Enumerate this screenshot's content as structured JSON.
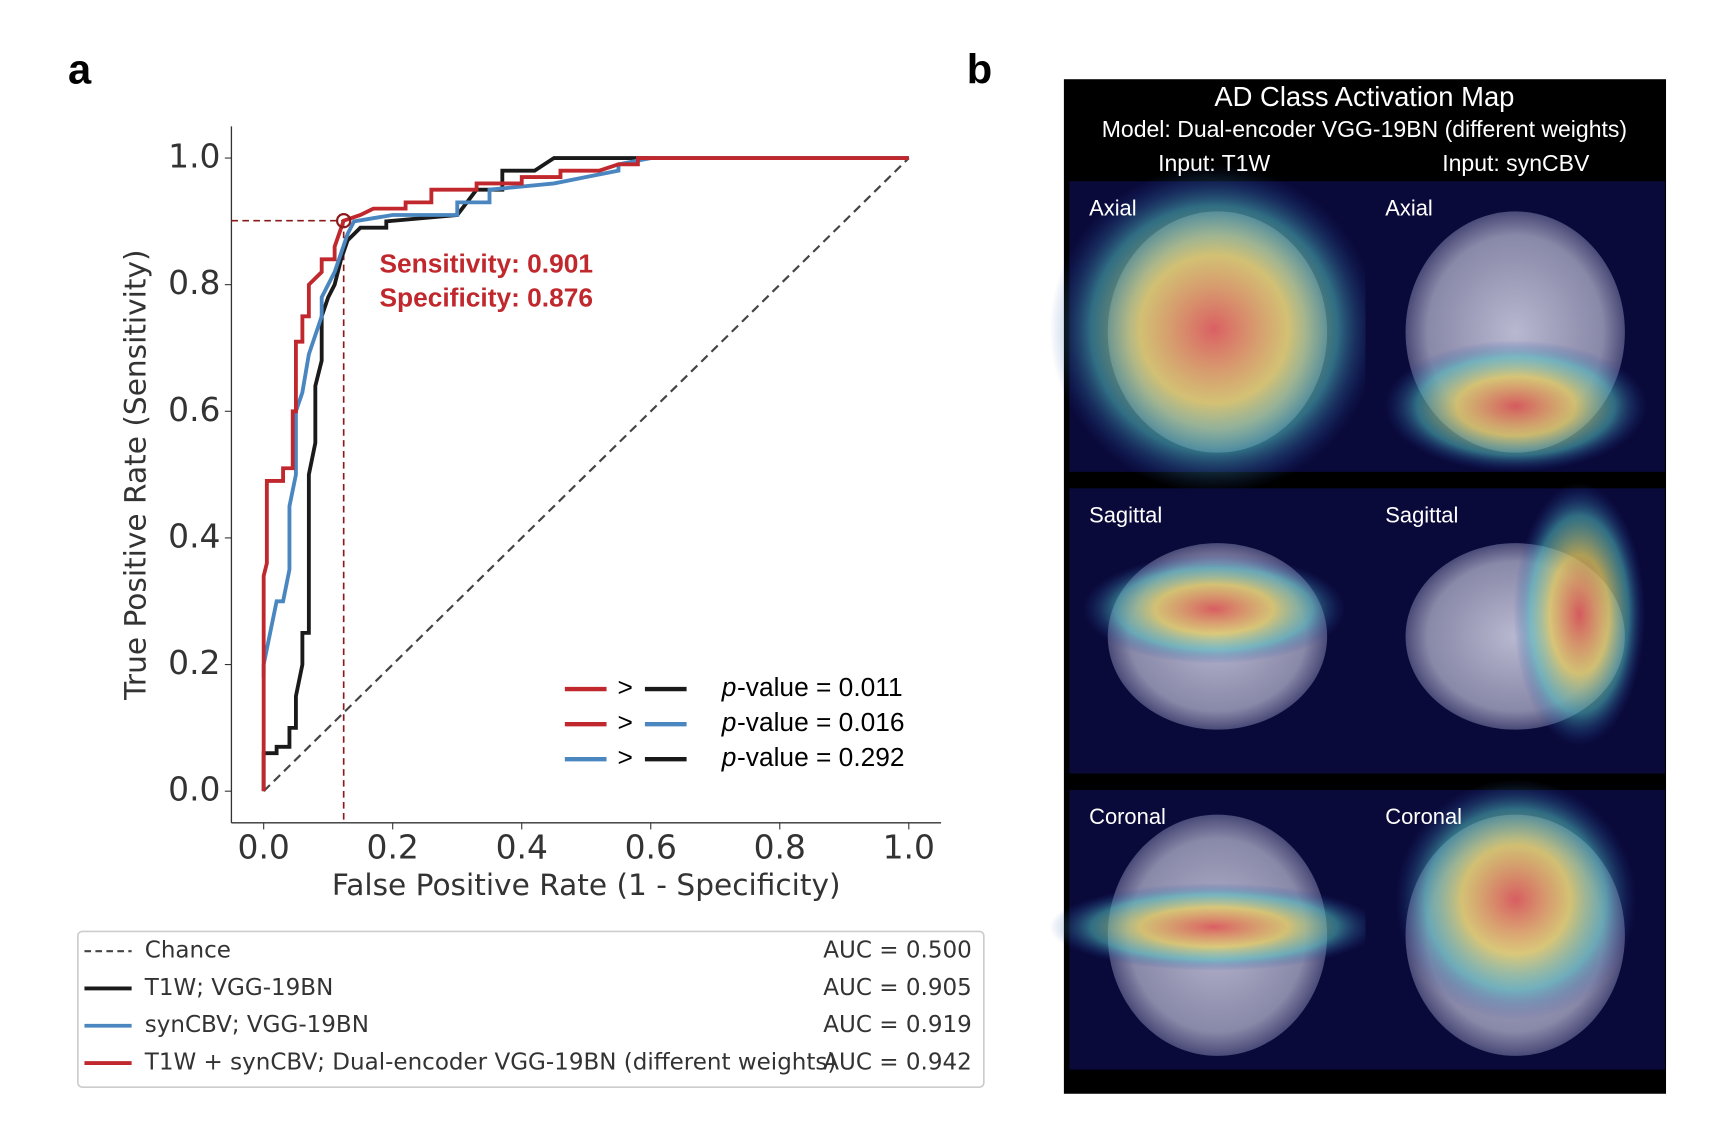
{
  "panel_a_label": "a",
  "panel_b_label": "b",
  "chart_data": {
    "type": "line",
    "xlabel": "False Positive Rate (1 - Specificity)",
    "ylabel": "True Positive Rate (Sensitivity)",
    "xlim": [
      -0.05,
      1.05
    ],
    "ylim": [
      -0.05,
      1.05
    ],
    "xticks": [
      {
        "value": 0,
        "label": "0.0"
      },
      {
        "value": 0.2,
        "label": "0.2"
      },
      {
        "value": 0.4,
        "label": "0.4"
      },
      {
        "value": 0.6,
        "label": "0.6"
      },
      {
        "value": 0.8,
        "label": "0.8"
      },
      {
        "value": 1,
        "label": "1.0"
      }
    ],
    "yticks": [
      {
        "value": 0,
        "label": "0.0"
      },
      {
        "value": 0.2,
        "label": "0.2"
      },
      {
        "value": 0.4,
        "label": "0.4"
      },
      {
        "value": 0.6,
        "label": "0.6"
      },
      {
        "value": 0.8,
        "label": "0.8"
      },
      {
        "value": 1,
        "label": "1.0"
      }
    ],
    "series": [
      {
        "name": "Chance",
        "auc_label": "AUC = 0.500",
        "color": "#444444",
        "dashed": true,
        "x": [
          0,
          1
        ],
        "values": [
          0,
          1
        ]
      },
      {
        "name": "T1W; VGG-19BN",
        "auc_label": "AUC = 0.905",
        "color": "#1a1a1a",
        "x": [
          0,
          0,
          0.02,
          0.02,
          0.04,
          0.04,
          0.05,
          0.05,
          0.06,
          0.06,
          0.07,
          0.07,
          0.08,
          0.08,
          0.09,
          0.09,
          0.1,
          0.11,
          0.12,
          0.13,
          0.14,
          0.15,
          0.19,
          0.19,
          0.3,
          0.33,
          0.37,
          0.37,
          0.42,
          0.45,
          1
        ],
        "values": [
          0,
          0.06,
          0.06,
          0.07,
          0.07,
          0.1,
          0.1,
          0.15,
          0.2,
          0.25,
          0.25,
          0.5,
          0.55,
          0.64,
          0.68,
          0.75,
          0.78,
          0.8,
          0.84,
          0.87,
          0.88,
          0.89,
          0.89,
          0.9,
          0.91,
          0.95,
          0.95,
          0.98,
          0.98,
          1,
          1
        ]
      },
      {
        "name": "synCBV; VGG-19BN",
        "auc_label": "AUC = 0.919",
        "color": "#4a86c0",
        "x": [
          0,
          0,
          0.01,
          0.02,
          0.03,
          0.04,
          0.04,
          0.05,
          0.05,
          0.06,
          0.07,
          0.09,
          0.09,
          0.1,
          0.11,
          0.12,
          0.13,
          0.14,
          0.2,
          0.3,
          0.3,
          0.35,
          0.35,
          0.45,
          0.5,
          0.55,
          0.55,
          0.6,
          1
        ],
        "values": [
          0.18,
          0.2,
          0.25,
          0.3,
          0.3,
          0.35,
          0.45,
          0.5,
          0.6,
          0.63,
          0.69,
          0.75,
          0.78,
          0.8,
          0.82,
          0.85,
          0.88,
          0.9,
          0.91,
          0.91,
          0.93,
          0.93,
          0.95,
          0.96,
          0.97,
          0.98,
          0.99,
          1,
          1
        ]
      },
      {
        "name": "T1W + synCBV; Dual-encoder VGG-19BN (different weights)",
        "auc_label": "AUC = 0.942",
        "color": "#c0282d",
        "x": [
          0,
          0,
          0.005,
          0.005,
          0.03,
          0.03,
          0.045,
          0.045,
          0.05,
          0.05,
          0.06,
          0.06,
          0.07,
          0.07,
          0.09,
          0.09,
          0.11,
          0.11,
          0.124,
          0.15,
          0.17,
          0.22,
          0.22,
          0.26,
          0.26,
          0.33,
          0.33,
          0.4,
          0.4,
          0.46,
          0.46,
          0.52,
          0.55,
          0.58,
          0.58,
          1
        ],
        "values": [
          0,
          0.34,
          0.36,
          0.49,
          0.49,
          0.51,
          0.51,
          0.6,
          0.6,
          0.71,
          0.71,
          0.75,
          0.75,
          0.8,
          0.82,
          0.84,
          0.84,
          0.86,
          0.901,
          0.91,
          0.92,
          0.92,
          0.93,
          0.93,
          0.95,
          0.95,
          0.96,
          0.96,
          0.97,
          0.97,
          0.98,
          0.98,
          0.99,
          0.99,
          1,
          1
        ]
      }
    ],
    "operating_point": {
      "x": 0.124,
      "y": 0.901,
      "color": "#8b1a1a"
    },
    "annotations": [
      "Sensitivity: 0.901",
      "Specificity: 0.876"
    ],
    "comparisons": [
      {
        "left_color": "#c0282d",
        "symbol": ">",
        "right_color": "#1a1a1a",
        "p": "p",
        "text": "-value = 0.011"
      },
      {
        "left_color": "#c0282d",
        "symbol": ">",
        "right_color": "#4a86c0",
        "p": "p",
        "text": "-value = 0.016"
      },
      {
        "left_color": "#4a86c0",
        "symbol": ">",
        "right_color": "#1a1a1a",
        "p": "p",
        "text": "-value = 0.292"
      }
    ]
  },
  "activation_map": {
    "title": "AD Class Activation Map",
    "model": "Model: Dual-encoder VGG-19BN (different weights)",
    "columns": [
      "Input: T1W",
      "Input: synCBV"
    ],
    "rows": [
      [
        "Axial",
        "Axial"
      ],
      [
        "Sagittal",
        "Sagittal"
      ],
      [
        "Coronal",
        "Coronal"
      ]
    ]
  }
}
